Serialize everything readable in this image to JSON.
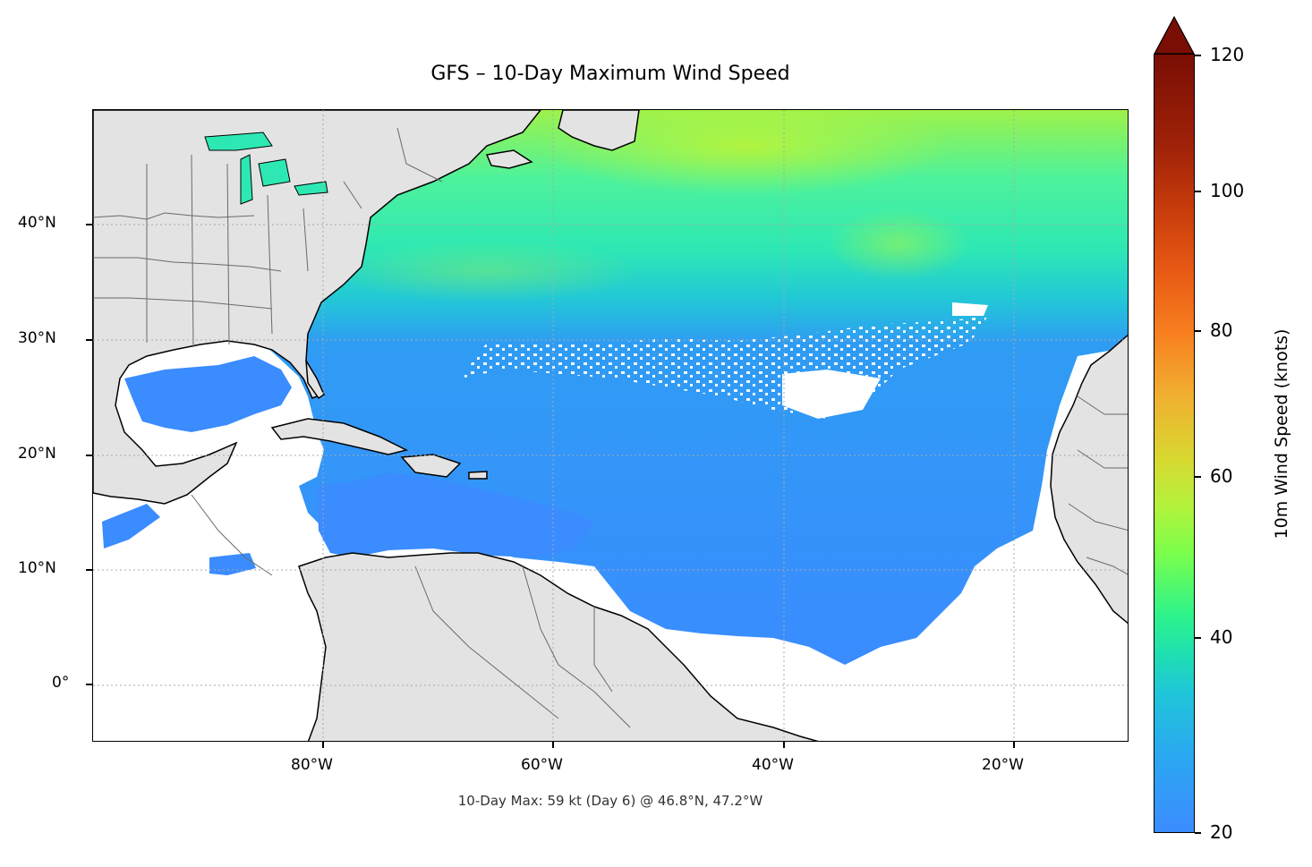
{
  "title": "GFS – 10-Day Maximum Wind Speed",
  "footnote": "10-Day Max: 59 kt (Day 6) @ 46.8°N, 47.2°W",
  "map": {
    "lon_range": [
      -100,
      -10
    ],
    "lat_range": [
      -5,
      50
    ],
    "lon_ticks": [
      {
        "value": -80,
        "label": "80°W"
      },
      {
        "value": -60,
        "label": "60°W"
      },
      {
        "value": -40,
        "label": "40°W"
      },
      {
        "value": -20,
        "label": "20°W"
      }
    ],
    "lat_ticks": [
      {
        "value": 40,
        "label": "40°N"
      },
      {
        "value": 30,
        "label": "30°N"
      },
      {
        "value": 20,
        "label": "20°N"
      },
      {
        "value": 10,
        "label": "10°N"
      },
      {
        "value": 0,
        "label": "0°"
      }
    ],
    "gridlines": "dotted",
    "colors": {
      "land": "#e3e3e3",
      "coast": "#000000",
      "borders": "#6a6a6a",
      "ocean_below_threshold": "#ffffff",
      "wind_low": "#3c8cff",
      "wind_mid": "#1fe0b0",
      "wind_high": "#b4f23c"
    }
  },
  "colorbar": {
    "label": "10m Wind Speed (knots)",
    "range": [
      20,
      120
    ],
    "extend": "max",
    "colormap": "turbo",
    "ticks": [
      {
        "value": 20,
        "label": "20"
      },
      {
        "value": 40,
        "label": "40"
      },
      {
        "value": 60,
        "label": "60"
      },
      {
        "value": 80,
        "label": "80"
      },
      {
        "value": 100,
        "label": "100"
      },
      {
        "value": 120,
        "label": "120"
      }
    ]
  }
}
